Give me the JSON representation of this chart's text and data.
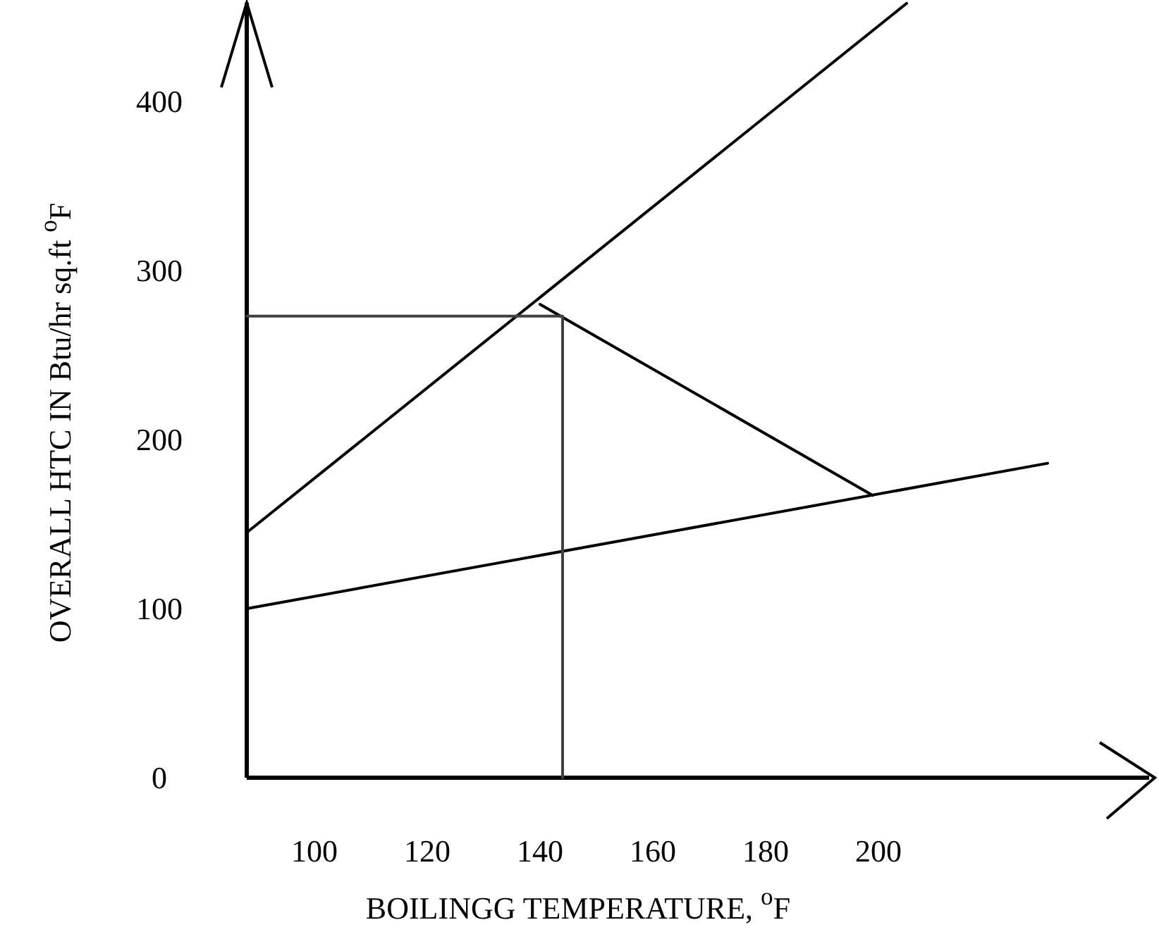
{
  "chart_data": {
    "type": "line",
    "xlabel": "BOILINGG TEMPERATURE, $^{o}$F",
    "ylabel": "OVERALL HTC IN Btu/hr sq.ft $^{o}$F",
    "xlim": [
      88,
      248
    ],
    "ylim": [
      0,
      460
    ],
    "xticks": [
      100,
      120,
      140,
      160,
      180,
      200
    ],
    "yticks": [
      0,
      100,
      200,
      300,
      400
    ],
    "marker": "none",
    "line_style": "solid",
    "series": [
      {
        "color": "#000000",
        "x": [
          88,
          205,
          null,
          140,
          199,
          null,
          88,
          230
        ],
        "values": [
          145,
          458,
          null,
          280,
          167,
          null,
          100,
          186
        ]
      },
      {
        "color": "#404040",
        "x": [
          88,
          144,
          144
        ],
        "values": [
          273,
          273,
          0
        ]
      }
    ]
  }
}
